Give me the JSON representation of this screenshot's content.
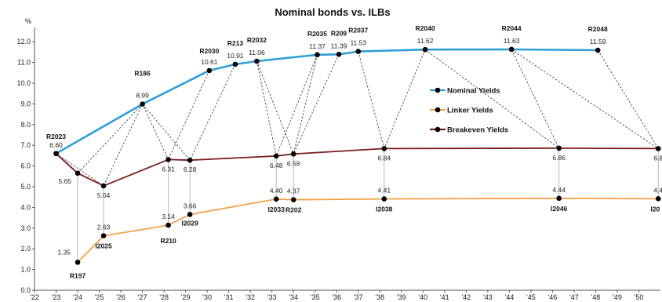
{
  "chart_data": {
    "type": "line",
    "title": "Nominal bonds vs. ILBs",
    "ylabel": "%",
    "ylim": [
      0,
      12.5
    ],
    "yticks": [
      "0.0",
      "1.0",
      "2.0",
      "3.0",
      "4.0",
      "5.0",
      "6.0",
      "7.0",
      "8.0",
      "9.0",
      "10.0",
      "11.0",
      "12.0"
    ],
    "xlim": [
      2022,
      2051
    ],
    "xticks": [
      "'22",
      "'23",
      "'24",
      "'25",
      "'26",
      "'27",
      "'28",
      "'29",
      "'30",
      "'31",
      "'32",
      "'33",
      "'34",
      "'35",
      "'36",
      "'37",
      "'38",
      "'39",
      "'40",
      "'41",
      "'42",
      "'43",
      "'44",
      "'45",
      "'46",
      "'47",
      "'48",
      "'49",
      "'50"
    ],
    "grid": false,
    "legend_position": "right",
    "legend": [
      "Nominal Yields",
      "Linker Yields",
      "Breakeven Yields"
    ],
    "series": [
      {
        "name": "Nominal Yields",
        "color": "#2f9fd6",
        "points": [
          {
            "x": 2023.0,
            "y": 6.6,
            "label": "6.60",
            "bond": "R2023"
          },
          {
            "x": 2027.0,
            "y": 8.99,
            "label": "8.99",
            "bond": "R186"
          },
          {
            "x": 2030.1,
            "y": 10.61,
            "label": "10.61",
            "bond": "R2030"
          },
          {
            "x": 2031.3,
            "y": 10.91,
            "label": "10.91",
            "bond": "R213"
          },
          {
            "x": 2032.3,
            "y": 11.06,
            "label": "11.06",
            "bond": "R2032"
          },
          {
            "x": 2035.1,
            "y": 11.37,
            "label": "11.37",
            "bond": "R2035"
          },
          {
            "x": 2036.1,
            "y": 11.39,
            "label": "11.39",
            "bond": "R209"
          },
          {
            "x": 2037.0,
            "y": 11.53,
            "label": "11.53",
            "bond": "R2037"
          },
          {
            "x": 2040.1,
            "y": 11.62,
            "label": "11.62",
            "bond": "R2040"
          },
          {
            "x": 2044.1,
            "y": 11.63,
            "label": "11.63",
            "bond": "R2044"
          },
          {
            "x": 2048.1,
            "y": 11.59,
            "label": "11.59",
            "bond": "R2048"
          }
        ]
      },
      {
        "name": "Linker Yields",
        "color": "#f4a24a",
        "points": [
          {
            "x": 2024.0,
            "y": 1.35,
            "label": "1.35",
            "bond": "R197"
          },
          {
            "x": 2025.2,
            "y": 2.63,
            "label": "2.63",
            "bond": "I2025"
          },
          {
            "x": 2028.2,
            "y": 3.14,
            "label": "3.14",
            "bond": "R210"
          },
          {
            "x": 2029.2,
            "y": 3.66,
            "label": "3.66",
            "bond": "I2029"
          },
          {
            "x": 2033.2,
            "y": 4.4,
            "label": "4.40",
            "bond": "I2033"
          },
          {
            "x": 2034.0,
            "y": 4.37,
            "label": "4.37",
            "bond": "R202"
          },
          {
            "x": 2038.2,
            "y": 4.41,
            "label": "4.41",
            "bond": "I2038"
          },
          {
            "x": 2046.3,
            "y": 4.44,
            "label": "4.44",
            "bond": "I2046"
          },
          {
            "x": 2050.9,
            "y": 4.42,
            "label": "4.4",
            "bond": "I20"
          }
        ]
      },
      {
        "name": "Breakeven Yields",
        "color": "#7a1c1c",
        "points": [
          {
            "x": 2023.0,
            "y": 6.6,
            "label": ""
          },
          {
            "x": 2024.0,
            "y": 5.65,
            "label": "5.65"
          },
          {
            "x": 2025.2,
            "y": 5.04,
            "label": "5.04"
          },
          {
            "x": 2028.2,
            "y": 6.31,
            "label": "6.31"
          },
          {
            "x": 2029.2,
            "y": 6.28,
            "label": "6.28"
          },
          {
            "x": 2033.2,
            "y": 6.48,
            "label": "6.48"
          },
          {
            "x": 2034.0,
            "y": 6.58,
            "label": "6.58"
          },
          {
            "x": 2038.2,
            "y": 6.84,
            "label": "6.84"
          },
          {
            "x": 2046.3,
            "y": 6.86,
            "label": "6.86"
          },
          {
            "x": 2050.9,
            "y": 6.84,
            "label": "6.8"
          }
        ]
      }
    ],
    "connectors": [
      [
        "Nominal Yields",
        0,
        "Breakeven Yields",
        1
      ],
      [
        "Nominal Yields",
        0,
        "Breakeven Yields",
        2
      ],
      [
        "Nominal Yields",
        1,
        "Breakeven Yields",
        1
      ],
      [
        "Nominal Yields",
        1,
        "Breakeven Yields",
        2
      ],
      [
        "Nominal Yields",
        1,
        "Breakeven Yields",
        3
      ],
      [
        "Nominal Yields",
        1,
        "Breakeven Yields",
        4
      ],
      [
        "Nominal Yields",
        2,
        "Breakeven Yields",
        3
      ],
      [
        "Nominal Yields",
        3,
        "Breakeven Yields",
        4
      ],
      [
        "Nominal Yields",
        4,
        "Breakeven Yields",
        5
      ],
      [
        "Nominal Yields",
        4,
        "Breakeven Yields",
        6
      ],
      [
        "Nominal Yields",
        5,
        "Breakeven Yields",
        5
      ],
      [
        "Nominal Yields",
        5,
        "Breakeven Yields",
        6
      ],
      [
        "Nominal Yields",
        6,
        "Breakeven Yields",
        6
      ],
      [
        "Nominal Yields",
        7,
        "Breakeven Yields",
        7
      ],
      [
        "Nominal Yields",
        8,
        "Breakeven Yields",
        7
      ],
      [
        "Nominal Yields",
        8,
        "Breakeven Yields",
        8
      ],
      [
        "Nominal Yields",
        9,
        "Breakeven Yields",
        8
      ],
      [
        "Nominal Yields",
        9,
        "Breakeven Yields",
        9
      ],
      [
        "Nominal Yields",
        10,
        "Breakeven Yields",
        9
      ]
    ],
    "drop_lines": [
      [
        "Breakeven Yields",
        1,
        "Linker Yields",
        0
      ],
      [
        "Breakeven Yields",
        2,
        "Linker Yields",
        1
      ],
      [
        "Breakeven Yields",
        3,
        "Linker Yields",
        2
      ],
      [
        "Breakeven Yields",
        4,
        "Linker Yields",
        3
      ],
      [
        "Breakeven Yields",
        5,
        "Linker Yields",
        4
      ],
      [
        "Breakeven Yields",
        6,
        "Linker Yields",
        5
      ],
      [
        "Breakeven Yields",
        7,
        "Linker Yields",
        6
      ],
      [
        "Breakeven Yields",
        8,
        "Linker Yields",
        7
      ],
      [
        "Breakeven Yields",
        9,
        "Linker Yields",
        8
      ]
    ]
  }
}
